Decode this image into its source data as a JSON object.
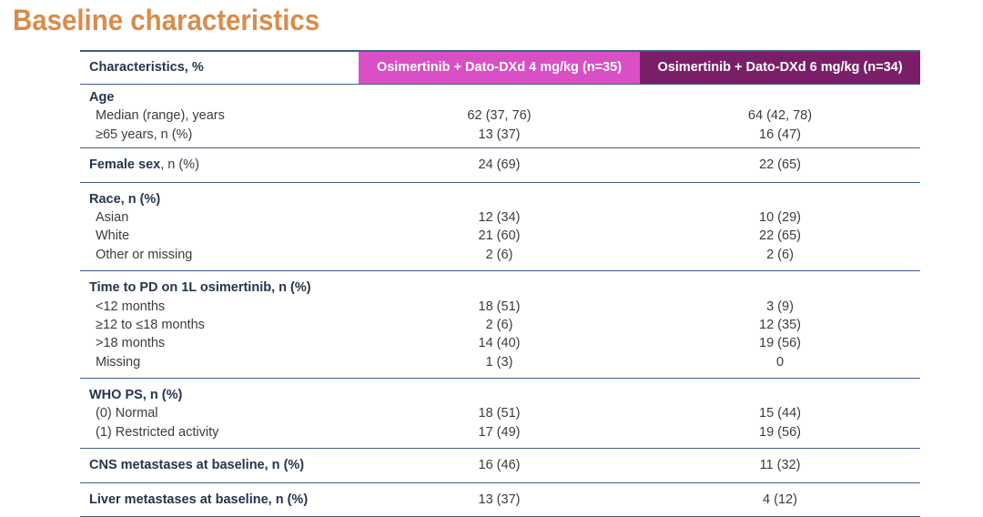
{
  "title": "Baseline characteristics",
  "header": {
    "characteristics": "Characteristics, %",
    "arm_a": "Osimertinib + Dato-DXd 4 mg/kg (n=35)",
    "arm_b": "Osimertinib + Dato-DXd 6 mg/kg (n=34)"
  },
  "colors": {
    "title": "#d98c4a",
    "arm_a_bg": "#d94fc5",
    "arm_b_bg": "#7a1f67",
    "rule": "#3e5f8a"
  },
  "sections": [
    {
      "rows": [
        {
          "label": "Age",
          "bold": true,
          "a": "",
          "b": ""
        },
        {
          "label": "Median (range), years",
          "sub": true,
          "a": "62 (37, 76)",
          "b": "64 (42, 78)"
        },
        {
          "label": "≥65 years, n (%)",
          "sub": true,
          "a": "13 (37)",
          "b": "16 (47)"
        }
      ]
    },
    {
      "rows": [
        {
          "label": "Female sex",
          "suffix": ", n (%)",
          "bold": true,
          "a": "24 (69)",
          "b": "22 (65)"
        }
      ]
    },
    {
      "rows": [
        {
          "label": "Race, n (%)",
          "bold": true,
          "a": "",
          "b": ""
        },
        {
          "label": "Asian",
          "sub": true,
          "a": "12 (34)",
          "b": "10 (29)"
        },
        {
          "label": "White",
          "sub": true,
          "a": "21 (60)",
          "b": "22 (65)"
        },
        {
          "label": "Other or missing",
          "sub": true,
          "a": "2 (6)",
          "b": "2 (6)"
        }
      ]
    },
    {
      "rows": [
        {
          "label": "Time to PD on 1L osimertinib, n (%)",
          "bold": true,
          "a": "",
          "b": ""
        },
        {
          "label": "<12 months",
          "sub": true,
          "a": "18 (51)",
          "b": "3 (9)"
        },
        {
          "label": "≥12 to ≤18 months",
          "sub": true,
          "a": "2 (6)",
          "b": "12 (35)"
        },
        {
          "label": ">18 months",
          "sub": true,
          "a": "14 (40)",
          "b": "19 (56)"
        },
        {
          "label": "Missing",
          "sub": true,
          "a": "1 (3)",
          "b": "0"
        }
      ]
    },
    {
      "rows": [
        {
          "label": "WHO PS, n (%)",
          "bold": true,
          "a": "",
          "b": ""
        },
        {
          "label": "(0) Normal",
          "sub": true,
          "a": "18 (51)",
          "b": "15 (44)"
        },
        {
          "label": "(1) Restricted activity",
          "sub": true,
          "a": "17 (49)",
          "b": "19 (56)"
        }
      ]
    },
    {
      "rows": [
        {
          "label": "CNS metastases at baseline, n (%)",
          "bold": true,
          "a": "16 (46)",
          "b": "11 (32)"
        }
      ]
    },
    {
      "rows": [
        {
          "label": "Liver metastases at baseline, n (%)",
          "bold": true,
          "a": "13 (37)",
          "b": "4 (12)"
        }
      ]
    }
  ]
}
